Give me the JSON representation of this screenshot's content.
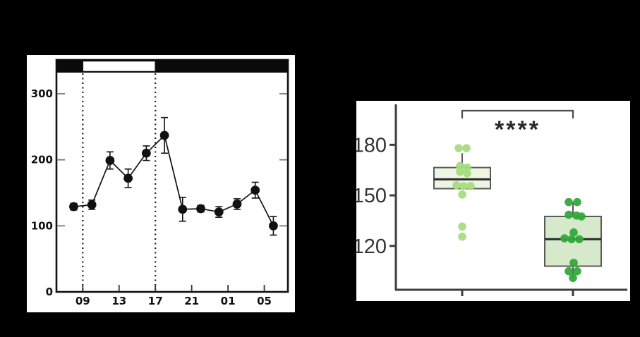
{
  "figure": {
    "background": "#000000",
    "panel_background": "#ffffff"
  },
  "chart_data": [
    {
      "type": "line",
      "panel": "timecourse",
      "title": "",
      "xlabel": "",
      "ylabel": "",
      "x_hours": [
        8,
        10,
        12,
        14,
        16,
        18,
        20,
        22,
        24,
        26,
        28,
        30
      ],
      "values": [
        129,
        132,
        199,
        172,
        210,
        237,
        125,
        126,
        121,
        133,
        154,
        100
      ],
      "errors": [
        5,
        7,
        13,
        14,
        11,
        27,
        18,
        5,
        8,
        8,
        12,
        14
      ],
      "x_tick_positions": [
        9,
        13,
        17,
        21,
        25,
        29
      ],
      "x_tick_labels": [
        "09",
        "13",
        "17",
        "21",
        "01",
        "05"
      ],
      "y_ticks": [
        0,
        100,
        200,
        300
      ],
      "y_tick_labels": [
        "0",
        "100",
        "200",
        "300"
      ],
      "ylim": [
        0,
        332
      ],
      "xlim": [
        6.1,
        31.6
      ],
      "light_period": {
        "start": 9,
        "end": 17
      },
      "dashed_lines": [
        9,
        17
      ],
      "marker": "filled-circle",
      "legend": "none",
      "grid": "off",
      "colors": {
        "series": "#111111",
        "frame": "#111111",
        "tick": "#777777",
        "bar_dark": "#0a0a0a",
        "bar_light": "#ffffff",
        "label": "#111111"
      }
    },
    {
      "type": "box",
      "panel": "boxplot",
      "title": "",
      "xlabel": "",
      "ylabel": "",
      "y_ticks": [
        120,
        150,
        180
      ],
      "y_tick_labels": [
        "120",
        "150",
        "180"
      ],
      "ylim": [
        94,
        204
      ],
      "grid": "off",
      "significance": {
        "label": "****",
        "between": [
          "group-1",
          "group-2"
        ]
      },
      "colors": {
        "axis": "#3d3d3d",
        "label": "#333333",
        "box_border": "#5a5a5a",
        "median": "#2b2b2b",
        "bracket": "#4a4a4a",
        "stars": "#2a2a2a"
      },
      "groups": [
        {
          "id": "group-1",
          "dot_color": "#a7dc7e",
          "box_fill": "#edf5e3",
          "q1": 154,
          "median": 159.5,
          "q3": 166.5,
          "whisker_low": 154,
          "whisker_high": 175,
          "points": [
            [
              -5,
              178
            ],
            [
              6,
              178
            ],
            [
              -3,
              167.5
            ],
            [
              7,
              166.5
            ],
            [
              -3,
              164
            ],
            [
              7,
              163
            ],
            [
              -8,
              156
            ],
            [
              2,
              155.5
            ],
            [
              12,
              155.5
            ],
            [
              0,
              150.5
            ],
            [
              0,
              131.5
            ],
            [
              0,
              125.5
            ]
          ]
        },
        {
          "id": "group-2",
          "dot_color": "#31a93c",
          "box_fill": "#d6e9ca",
          "q1": 108,
          "median": 124,
          "q3": 137.5,
          "whisker_low": 101.5,
          "whisker_high": 146,
          "points": [
            [
              -6,
              146
            ],
            [
              6,
              146
            ],
            [
              -6,
              138.5
            ],
            [
              5,
              138
            ],
            [
              12,
              137.5
            ],
            [
              1,
              128
            ],
            [
              -12,
              124.5
            ],
            [
              -2,
              124
            ],
            [
              9,
              124
            ],
            [
              1,
              110
            ],
            [
              -6,
              105
            ],
            [
              6,
              105
            ],
            [
              0,
              101
            ]
          ]
        }
      ]
    }
  ]
}
